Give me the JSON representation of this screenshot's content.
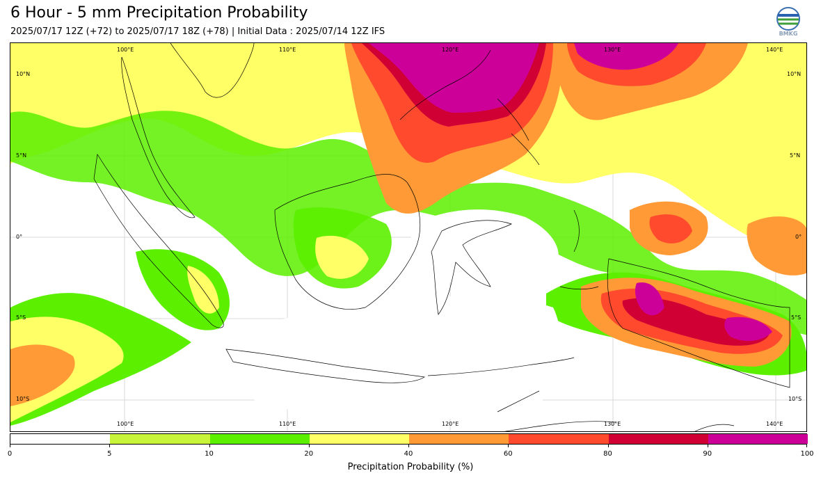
{
  "header": {
    "title": "6 Hour - 5 mm Precipitation Probability",
    "subtitle": "2025/07/17 12Z (+72) to 2025/07/17 18Z (+78) | Initial Data : 2025/07/14 12Z IFS",
    "logo_text": "BMKG"
  },
  "map": {
    "lon_labels_top": [
      "100°E",
      "110°E",
      "120°E",
      "130°E",
      "140°E"
    ],
    "lon_labels_bottom": [
      "100°E",
      "110°E",
      "120°E",
      "130°E",
      "140°E"
    ],
    "lat_labels_left": [
      "10°N",
      "5°N",
      "0°",
      "5°S",
      "10°S"
    ],
    "lat_labels_right": [
      "10°N",
      "5°N",
      "0°",
      "5°S",
      "10°S"
    ]
  },
  "colorbar": {
    "label": "Precipitation Probability (%)",
    "ticks": [
      "0",
      "5",
      "10",
      "20",
      "40",
      "60",
      "80",
      "90",
      "100"
    ],
    "colors": [
      "#ffffff",
      "#c8f53a",
      "#5cf000",
      "#ffff66",
      "#ff9a36",
      "#ff4a2e",
      "#d00035",
      "#cc0099"
    ]
  }
}
